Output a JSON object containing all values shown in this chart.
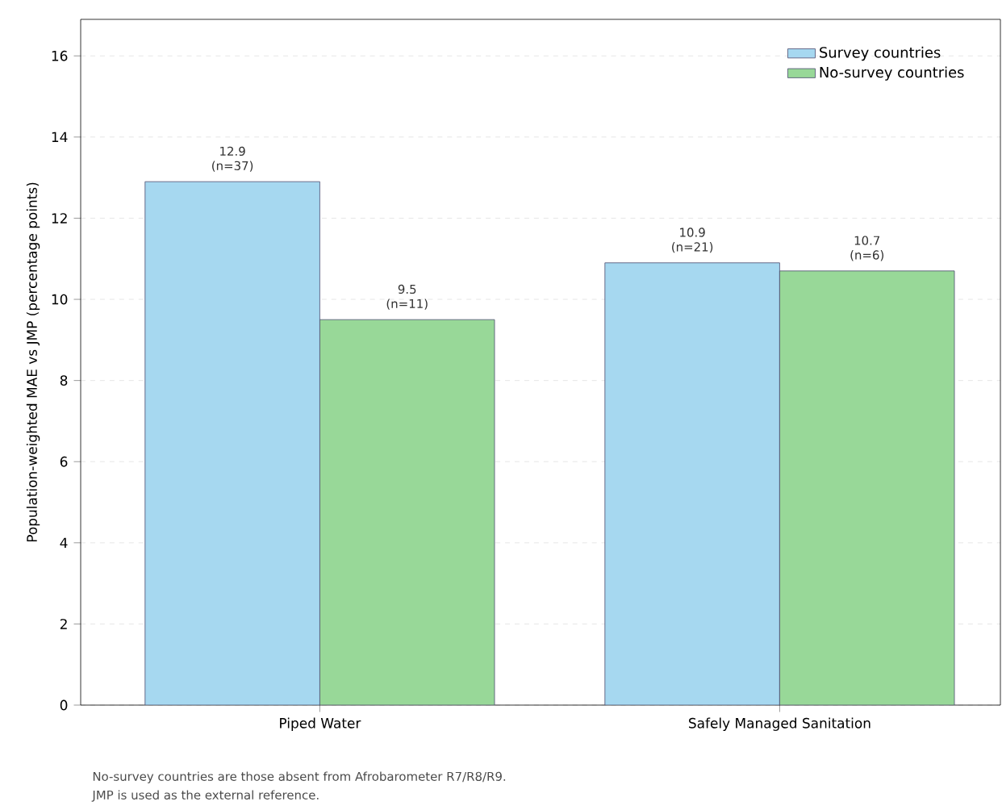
{
  "chart_data": {
    "type": "bar",
    "ylabel": "Population-weighted MAE vs JMP (percentage points)",
    "categories": [
      "Piped Water",
      "Safely Managed Sanitation"
    ],
    "series": [
      {
        "name": "Survey countries",
        "color": "#a6d8f0",
        "values": [
          12.9,
          10.9
        ],
        "value_labels": [
          "12.9 (n=37)",
          "10.9 (n=21)"
        ]
      },
      {
        "name": "No-survey countries",
        "color": "#98d898",
        "values": [
          9.5,
          10.7
        ],
        "value_labels": [
          "9.5 (n=11)",
          "10.7 (n=6)"
        ]
      }
    ],
    "ylim": [
      0,
      16.9
    ],
    "yticks": [
      0,
      2,
      4,
      6,
      8,
      10,
      12,
      14,
      16
    ],
    "grid": "y",
    "legend": "top right",
    "annotations": [
      "No-survey countries are those absent from Afrobarometer R7/R8/R9.",
      "JMP is used as the external reference."
    ]
  }
}
